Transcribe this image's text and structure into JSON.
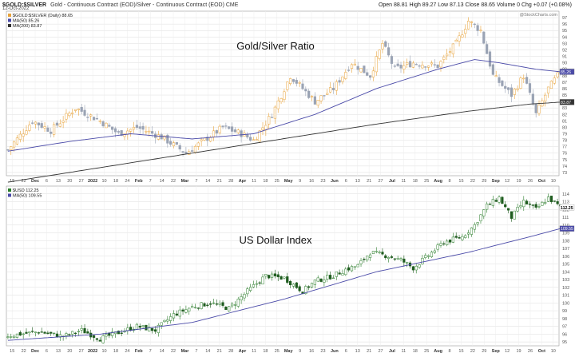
{
  "header": {
    "symbol": "$GOLD:$SILVER",
    "description": "Gold - Continuous Contract (EOD)/Silver - Continuous Contract (EOD)  CME",
    "date": "12-Oct-2022",
    "quote": "Open 88.81  High 89.27  Low 87.13  Close 88.65  Volume 0  Chg +0.07 (+0.08%)",
    "watermark": "@StockCharts.com"
  },
  "colors": {
    "up_candle": "#e8a33a",
    "down_candle": "#9aa3b4",
    "usd_up": "#2a7d2a",
    "usd_down": "#1f5c1f",
    "ma50": "#4a4aa8",
    "ma200": "#333333",
    "grid": "#dedede",
    "axis_label": "#555555"
  },
  "chart_data": [
    {
      "type": "candlestick",
      "title": "Gold/Silver Ratio",
      "legend": [
        "$GOLD:$SILVER (Daily) 88.65",
        "MA(50) 85.26",
        "MA(200) 83.87"
      ],
      "last_value_labels": [
        "88.65",
        "85.26",
        "83.87"
      ],
      "ylim": [
        72.5,
        98
      ],
      "y_ticks": [
        73,
        74,
        75,
        76,
        77,
        78,
        79,
        80,
        81,
        82,
        83,
        84,
        85,
        86,
        87,
        88,
        89,
        90,
        91,
        92,
        93,
        94,
        95,
        96,
        97
      ],
      "grid": true,
      "anchors": [
        [
          0,
          76.5
        ],
        [
          8,
          81
        ],
        [
          14,
          79.5
        ],
        [
          22,
          83
        ],
        [
          30,
          81
        ],
        [
          36,
          79
        ],
        [
          42,
          80
        ],
        [
          50,
          78.5
        ],
        [
          58,
          76
        ],
        [
          64,
          78
        ],
        [
          70,
          80
        ],
        [
          76,
          79
        ],
        [
          80,
          78
        ],
        [
          86,
          82
        ],
        [
          92,
          88
        ],
        [
          100,
          84
        ],
        [
          106,
          86
        ],
        [
          112,
          90
        ],
        [
          118,
          88
        ],
        [
          122,
          93
        ],
        [
          126,
          89
        ],
        [
          132,
          90
        ],
        [
          140,
          89.5
        ],
        [
          146,
          93
        ],
        [
          150,
          96.5
        ],
        [
          154,
          95
        ],
        [
          158,
          88
        ],
        [
          164,
          85
        ],
        [
          168,
          88
        ],
        [
          172,
          82
        ],
        [
          176,
          86
        ],
        [
          180,
          88.65
        ]
      ],
      "ma50_anchors": [
        [
          0,
          76.3
        ],
        [
          20,
          77.8
        ],
        [
          40,
          79
        ],
        [
          60,
          78.2
        ],
        [
          80,
          79
        ],
        [
          100,
          82
        ],
        [
          120,
          86
        ],
        [
          140,
          89
        ],
        [
          152,
          90.5
        ],
        [
          160,
          90
        ],
        [
          172,
          89
        ],
        [
          180,
          88.6
        ]
      ],
      "ma200_anchors": [
        [
          0,
          71.5
        ],
        [
          40,
          74.5
        ],
        [
          80,
          77.5
        ],
        [
          120,
          80.5
        ],
        [
          150,
          82.5
        ],
        [
          170,
          83.6
        ],
        [
          180,
          83.9
        ]
      ]
    },
    {
      "type": "candlestick",
      "title": "US Dollar Index",
      "legend": [
        "$USD 112.25",
        "MA(50) 109.55"
      ],
      "last_value_labels": [
        "112.25",
        "109.55"
      ],
      "ylim": [
        94.5,
        115
      ],
      "y_ticks": [
        95,
        96,
        97,
        98,
        99,
        100,
        101,
        102,
        103,
        104,
        105,
        106,
        107,
        108,
        109,
        110,
        111,
        112,
        113,
        114
      ],
      "grid": true,
      "anchors": [
        [
          0,
          95.8
        ],
        [
          10,
          96.3
        ],
        [
          18,
          95.7
        ],
        [
          24,
          96.5
        ],
        [
          30,
          95.4
        ],
        [
          36,
          96.2
        ],
        [
          42,
          97
        ],
        [
          48,
          96.5
        ],
        [
          54,
          98.5
        ],
        [
          60,
          99.5
        ],
        [
          66,
          100
        ],
        [
          72,
          99.3
        ],
        [
          78,
          101.5
        ],
        [
          84,
          103.5
        ],
        [
          90,
          103.2
        ],
        [
          96,
          101.5
        ],
        [
          100,
          102.8
        ],
        [
          106,
          103.5
        ],
        [
          110,
          104.3
        ],
        [
          114,
          104.8
        ],
        [
          118,
          106.5
        ],
        [
          124,
          106
        ],
        [
          128,
          105.5
        ],
        [
          132,
          104.5
        ],
        [
          136,
          105.8
        ],
        [
          142,
          107.8
        ],
        [
          148,
          108.5
        ],
        [
          152,
          110
        ],
        [
          156,
          112.5
        ],
        [
          160,
          113.5
        ],
        [
          164,
          111
        ],
        [
          168,
          113
        ],
        [
          172,
          112
        ],
        [
          176,
          113.5
        ],
        [
          180,
          112.25
        ]
      ],
      "ma50_anchors": [
        [
          0,
          95.2
        ],
        [
          30,
          96
        ],
        [
          60,
          97.5
        ],
        [
          90,
          100.5
        ],
        [
          120,
          104
        ],
        [
          150,
          106.5
        ],
        [
          170,
          108.5
        ],
        [
          180,
          109.55
        ]
      ]
    }
  ],
  "x_axis": {
    "labels": [
      "15",
      "22",
      "Dec",
      "6",
      "13",
      "20",
      "27",
      "2022",
      "10",
      "18",
      "24",
      "Feb",
      "7",
      "14",
      "22",
      "Mar",
      "7",
      "14",
      "21",
      "28",
      "Apr",
      "11",
      "18",
      "25",
      "May",
      "9",
      "16",
      "23",
      "Jun",
      "6",
      "13",
      "21",
      "27",
      "Jul",
      "11",
      "18",
      "25",
      "Aug",
      "8",
      "15",
      "22",
      "29",
      "Sep",
      "12",
      "19",
      "26",
      "Oct",
      "10"
    ],
    "month_labels": [
      "Dec",
      "2022",
      "Feb",
      "Mar",
      "Apr",
      "May",
      "Jun",
      "Jul",
      "Aug",
      "Sep",
      "Oct"
    ]
  }
}
